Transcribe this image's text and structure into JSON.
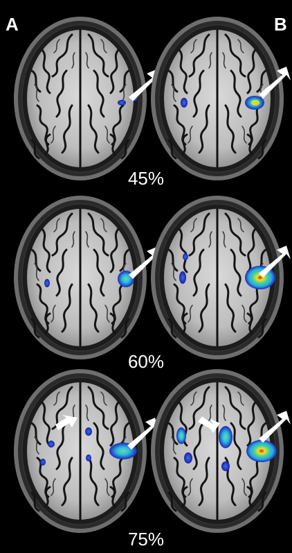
{
  "panels": {
    "left": "A",
    "right": "B"
  },
  "rows": [
    {
      "threshold": "45%"
    },
    {
      "threshold": "60%"
    },
    {
      "threshold": "75%"
    }
  ],
  "colors": {
    "background": "#000000",
    "label": "#ffffff",
    "activation_low": "#2030c8",
    "activation_mid": "#30c0d8",
    "activation_high": "#f0e020",
    "activation_peak": "#e02010"
  }
}
